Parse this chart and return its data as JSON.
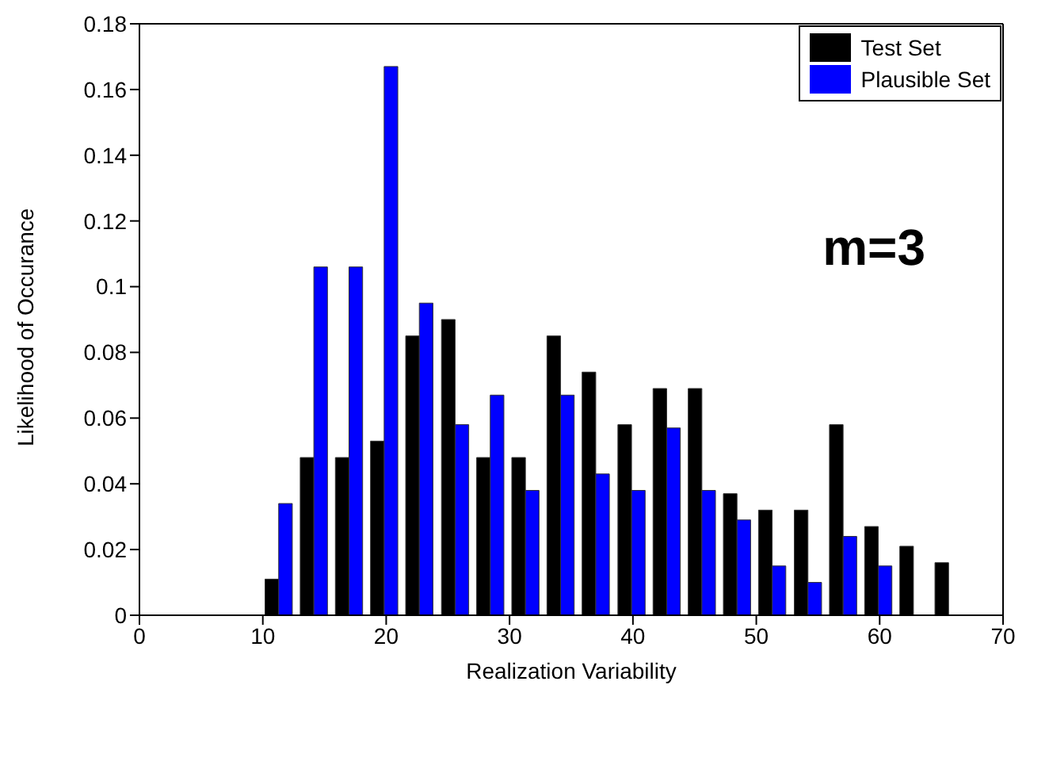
{
  "chart_data": {
    "type": "histogram",
    "xlabel": "Realization Variability",
    "ylabel": "Likelihood of Occurance",
    "bins": [
      9.9,
      12.8,
      15.6,
      18.5,
      21.3,
      24.2,
      27.1,
      29.9,
      32.8,
      35.6,
      38.5,
      41.4,
      44.2,
      47.1,
      49.9,
      52.8,
      55.7,
      58.5,
      61.4,
      64.2,
      67.1
    ],
    "series": [
      {
        "name": "Test Set",
        "color": "#000000",
        "values": [
          0.011,
          0.048,
          0.048,
          0.053,
          0.085,
          0.09,
          0.048,
          0.048,
          0.085,
          0.074,
          0.058,
          0.069,
          0.069,
          0.037,
          0.032,
          0.032,
          0.058,
          0.027,
          0.021,
          0.016
        ]
      },
      {
        "name": "Plausible Set",
        "color": "#0000ff",
        "values": [
          0.034,
          0.106,
          0.106,
          0.167,
          0.095,
          0.058,
          0.067,
          0.038,
          0.067,
          0.043,
          0.038,
          0.057,
          0.038,
          0.029,
          0.015,
          0.01,
          0.024,
          0.015,
          0,
          0
        ]
      }
    ],
    "xlim": [
      0,
      70
    ],
    "xticks": [
      0,
      10,
      20,
      30,
      40,
      50,
      60,
      70
    ],
    "ylim": [
      0,
      0.18
    ],
    "yticks": [
      0,
      0.02,
      0.04,
      0.06,
      0.08,
      0.1,
      0.12,
      0.14,
      0.16,
      0.18
    ],
    "legend": "top right",
    "annotations": [
      "m=3"
    ]
  }
}
